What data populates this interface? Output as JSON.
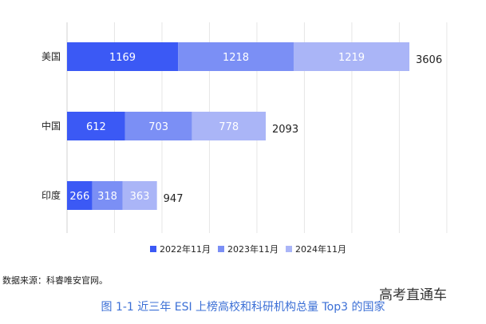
{
  "chart_data": {
    "type": "bar",
    "orientation": "horizontal",
    "stacked": true,
    "categories": [
      "美国",
      "中国",
      "印度"
    ],
    "series": [
      {
        "name": "2022年11月",
        "color": "#3b59f5",
        "values": [
          1169,
          612,
          266
        ]
      },
      {
        "name": "2023年11月",
        "color": "#7b8ff5",
        "values": [
          1218,
          703,
          318
        ]
      },
      {
        "name": "2024年11月",
        "color": "#aab5f7",
        "values": [
          1219,
          778,
          363
        ]
      }
    ],
    "totals": [
      3606,
      2093,
      947
    ],
    "xlim": [
      0,
      4000
    ],
    "grid": true,
    "legend_position": "bottom"
  },
  "source_text": "数据来源：科睿唯安官网。",
  "brand_text": "高考直通车",
  "caption_text": "图 1-1  近三年 ESI 上榜高校和科研机构总量 Top3 的国家"
}
